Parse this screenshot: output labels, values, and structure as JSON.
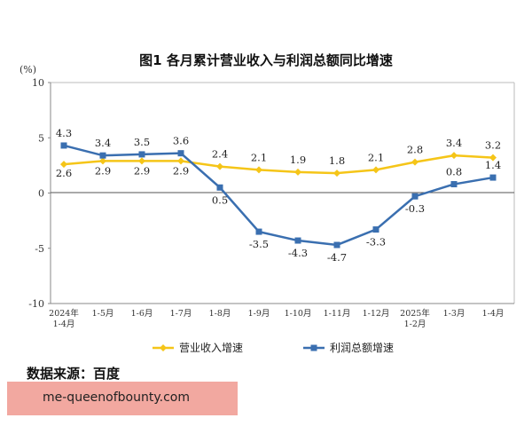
{
  "chart_data": {
    "type": "line",
    "title": "图1 各月累计营业收入与利润总额同比增速",
    "unit_label": "(%)",
    "ylim": [
      -10,
      10
    ],
    "yticks": [
      10,
      5,
      0,
      -5,
      -10
    ],
    "grid": false,
    "legend_placement": "bottom",
    "categories": [
      [
        "2024年",
        "1-4月"
      ],
      [
        "1-5月"
      ],
      [
        "1-6月"
      ],
      [
        "1-7月"
      ],
      [
        "1-8月"
      ],
      [
        "1-9月"
      ],
      [
        "1-10月"
      ],
      [
        "1-11月"
      ],
      [
        "1-12月"
      ],
      [
        "2025年",
        "1-2月"
      ],
      [
        "1-3月"
      ],
      [
        "1-4月"
      ]
    ],
    "series": [
      {
        "name": "营业收入增速",
        "color": "#f5c518",
        "marker": "diamond",
        "values": [
          2.6,
          2.9,
          2.9,
          2.9,
          2.4,
          2.1,
          1.9,
          1.8,
          2.1,
          2.8,
          3.4,
          3.2
        ],
        "labels": [
          "2.6",
          "2.9",
          "2.9",
          "2.9",
          "2.4",
          "2.1",
          "1.9",
          "1.8",
          "2.1",
          "2.8",
          "3.4",
          "3.2"
        ]
      },
      {
        "name": "利润总额增速",
        "color": "#3a6fb0",
        "marker": "square",
        "values": [
          4.3,
          3.4,
          3.5,
          3.6,
          0.5,
          -3.5,
          -4.3,
          -4.7,
          -3.3,
          -0.3,
          0.8,
          1.4
        ],
        "labels": [
          "4.3",
          "3.4",
          "3.5",
          "3.6",
          "0.5",
          "-3.5",
          "-4.3",
          "-4.7",
          "-3.3",
          "-0.3",
          "0.8",
          "1.4"
        ]
      }
    ]
  },
  "footer": {
    "source": "数据来源：百度",
    "watermark": "me-queenofbounty.com"
  }
}
